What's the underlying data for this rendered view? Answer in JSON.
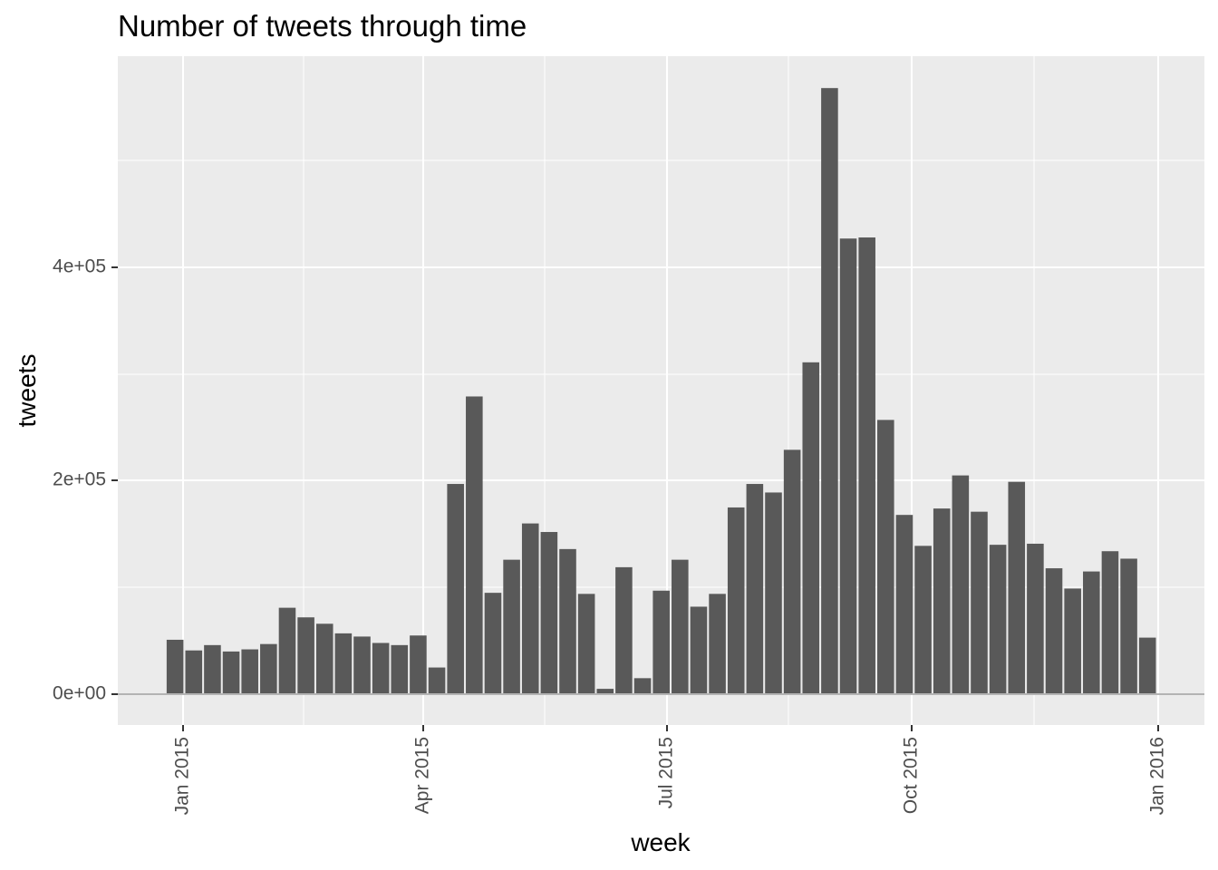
{
  "chart_data": {
    "type": "bar",
    "title": "Number of tweets through time",
    "xlabel": "week",
    "ylabel": "tweets",
    "x_ticks": [
      "Jan 2015",
      "Apr 2015",
      "Jul 2015",
      "Oct 2015",
      "Jan 2016"
    ],
    "y_ticks": [
      "0e+00",
      "2e+05",
      "4e+05"
    ],
    "ylim": [
      -29000,
      595000
    ],
    "grid": true,
    "legend": "none",
    "colors": {
      "bar": "#595959",
      "panel": "#ebebeb",
      "grid": "#ffffff",
      "tick_label": "#4d4d4d"
    },
    "x": [
      "2014-12-29",
      "2015-01-05",
      "2015-01-12",
      "2015-01-19",
      "2015-01-26",
      "2015-02-02",
      "2015-02-09",
      "2015-02-16",
      "2015-02-23",
      "2015-03-02",
      "2015-03-09",
      "2015-03-16",
      "2015-03-23",
      "2015-03-30",
      "2015-04-06",
      "2015-04-13",
      "2015-04-20",
      "2015-04-27",
      "2015-05-04",
      "2015-05-11",
      "2015-05-18",
      "2015-05-25",
      "2015-06-01",
      "2015-06-08",
      "2015-06-15",
      "2015-06-22",
      "2015-06-29",
      "2015-07-06",
      "2015-07-13",
      "2015-07-20",
      "2015-07-27",
      "2015-08-03",
      "2015-08-10",
      "2015-08-17",
      "2015-08-24",
      "2015-08-31",
      "2015-09-07",
      "2015-09-14",
      "2015-09-21",
      "2015-09-28",
      "2015-10-05",
      "2015-10-12",
      "2015-10-19",
      "2015-10-26",
      "2015-11-02",
      "2015-11-09",
      "2015-11-16",
      "2015-11-23",
      "2015-11-30",
      "2015-12-07",
      "2015-12-14",
      "2015-12-21",
      "2015-12-28"
    ],
    "values": [
      51000,
      41000,
      46000,
      40000,
      42000,
      47000,
      81000,
      72000,
      66000,
      57000,
      54000,
      48000,
      46000,
      55000,
      25000,
      197000,
      279000,
      95000,
      126000,
      160000,
      152000,
      136000,
      94000,
      5000,
      119000,
      15000,
      97000,
      126000,
      82000,
      94000,
      175000,
      197000,
      189000,
      229000,
      311000,
      568000,
      427000,
      428000,
      257000,
      168000,
      139000,
      174000,
      205000,
      171000,
      140000,
      199000,
      141000,
      118000,
      99000,
      115000,
      134000,
      127000,
      53000
    ]
  }
}
